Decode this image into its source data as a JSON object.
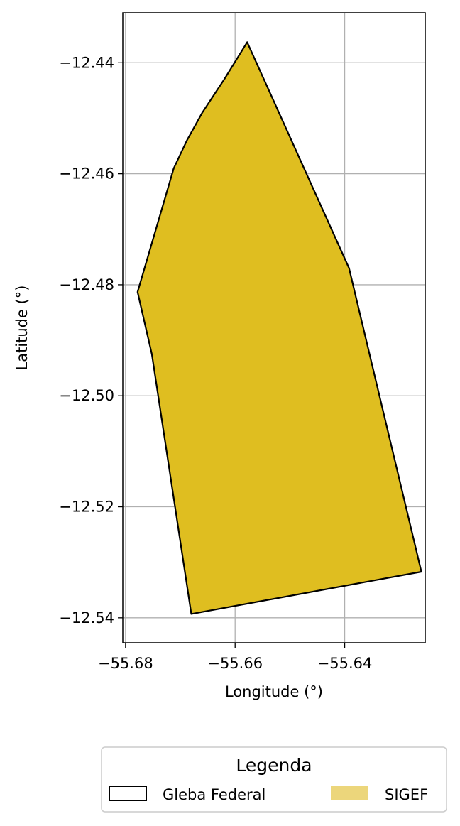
{
  "map": {
    "xlabel": "Longitude (°)",
    "ylabel": "Latitude (°)",
    "xlim": [
      -55.6805,
      -55.6253
    ],
    "ylim": [
      -12.5445,
      -12.431
    ],
    "x_ticks": [
      -55.68,
      -55.66,
      -55.64
    ],
    "x_tick_labels": [
      "−55.68",
      "−55.66",
      "−55.64"
    ],
    "y_ticks": [
      -12.44,
      -12.46,
      -12.48,
      -12.5,
      -12.52,
      -12.54
    ],
    "y_tick_labels": [
      "−12.44",
      "−12.46",
      "−12.48",
      "−12.50",
      "−12.52",
      "−12.54"
    ],
    "grid": true,
    "grid_color": "#b0b0b0",
    "features": [
      {
        "name": "SIGEF",
        "fill": "#dfbe20",
        "stroke": "#000000",
        "coordinates": [
          [
            -55.6578,
            -12.4363
          ],
          [
            -55.662,
            -12.443
          ],
          [
            -55.666,
            -12.449
          ],
          [
            -55.6688,
            -12.454
          ],
          [
            -55.6712,
            -12.459
          ],
          [
            -55.6778,
            -12.4813
          ],
          [
            -55.6752,
            -12.4925
          ],
          [
            -55.668,
            -12.5393
          ],
          [
            -55.626,
            -12.5317
          ],
          [
            -55.6392,
            -12.477
          ]
        ]
      }
    ]
  },
  "legend": {
    "title": "Legenda",
    "placement": "bottom-center",
    "entries": [
      {
        "label": "Gleba Federal",
        "style": "outline",
        "stroke": "#000000",
        "fill": "none"
      },
      {
        "label": "SIGEF",
        "style": "fill",
        "fill": "#ecd67b"
      }
    ]
  }
}
